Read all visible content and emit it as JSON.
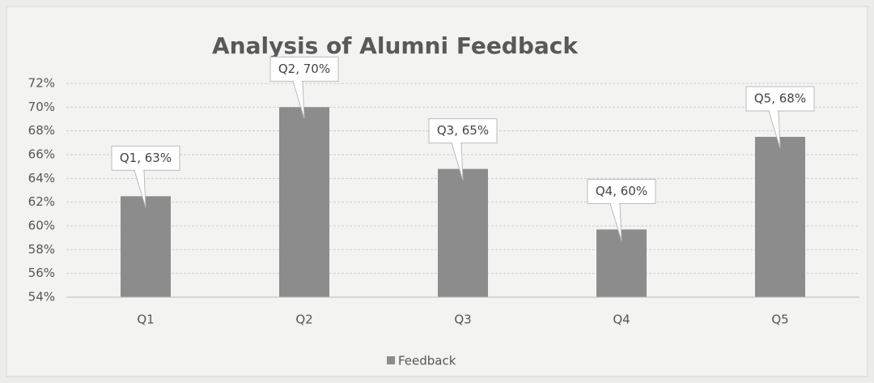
{
  "chart_data": {
    "type": "bar",
    "title": "Analysis of Alumni Feedback",
    "categories": [
      "Q1",
      "Q2",
      "Q3",
      "Q4",
      "Q5"
    ],
    "series": [
      {
        "name": "Feedback",
        "color": "#8c8c8c",
        "values": [
          62.5,
          70,
          64.8,
          59.7,
          67.5
        ],
        "value_labels": [
          "Q1, 63%",
          "Q2, 70%",
          "Q3, 65%",
          "Q4, 60%",
          "Q5, 68%"
        ]
      }
    ],
    "ylim": [
      54,
      72
    ],
    "yticks": [
      {
        "value": 54,
        "label": "54%"
      },
      {
        "value": 56,
        "label": "56%"
      },
      {
        "value": 58,
        "label": "58%"
      },
      {
        "value": 60,
        "label": "60%"
      },
      {
        "value": 62,
        "label": "62%"
      },
      {
        "value": 64,
        "label": "64%"
      },
      {
        "value": 66,
        "label": "66%"
      },
      {
        "value": 68,
        "label": "68%"
      },
      {
        "value": 70,
        "label": "70%"
      },
      {
        "value": 72,
        "label": "72%"
      }
    ],
    "grid": true,
    "legend": "bottom"
  }
}
